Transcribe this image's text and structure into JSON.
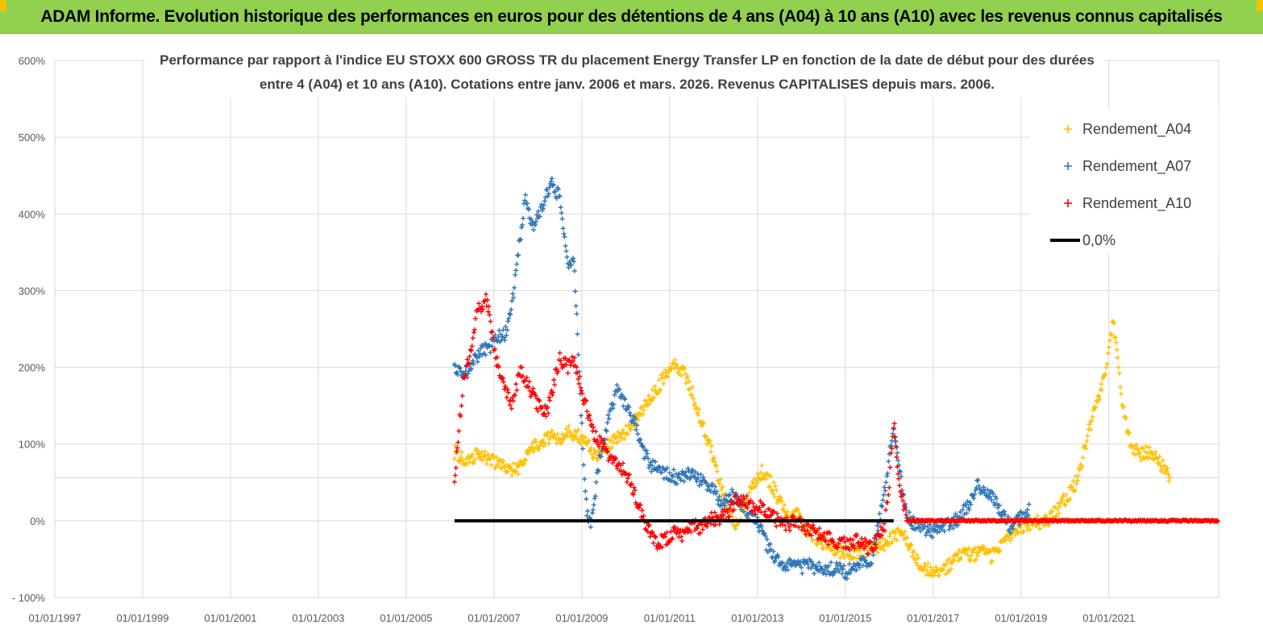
{
  "banner": {
    "title": "ADAM Informe. Evolution historique des performances en euros pour des détentions de 4 ans (A04) à 10 ans (A10) avec les revenus connus capitalisés"
  },
  "colors": {
    "banner": "#92d050",
    "A04": "#ffc000",
    "A07": "#2e75b6",
    "A10": "#ff0000",
    "zero": "#000000",
    "grid": "#d9d9d9"
  },
  "chart_data": {
    "type": "scatter",
    "title_lines": [
      "Performance par rapport à l'indice EU STOXX 600 GROSS TR  du placement Energy Transfer LP en fonction de la date de début pour des durées",
      "entre 4 (A04) et 10 ans (A10). Cotations entre janv. 2006 et mars. 2026. Revenus CAPITALISES depuis mars. 2006."
    ],
    "x_tick_labels": [
      "01/01/1997",
      "01/01/1999",
      "01/01/2001",
      "01/01/2003",
      "01/01/2005",
      "01/01/2007",
      "01/01/2009",
      "01/01/2011",
      "01/01/2013",
      "01/01/2015",
      "01/01/2017",
      "01/01/2019",
      "01/01/2021"
    ],
    "x_range": [
      1997.0,
      2023.5
    ],
    "y_tick_labels": [
      "600%",
      "500%",
      "400%",
      "300%",
      "200%",
      "100%",
      "0%",
      "- 100%"
    ],
    "y_ticks": [
      600,
      500,
      400,
      300,
      200,
      100,
      0,
      -100
    ],
    "y_range": [
      -100,
      600
    ],
    "legend_position": "top-right",
    "series": [
      {
        "name": "Rendement_A04",
        "color": "#ffc000",
        "marker": "+",
        "points": [
          [
            2006.1,
            90
          ],
          [
            2006.3,
            80
          ],
          [
            2006.6,
            85
          ],
          [
            2006.9,
            80
          ],
          [
            2007.1,
            75
          ],
          [
            2007.3,
            68
          ],
          [
            2007.5,
            65
          ],
          [
            2007.7,
            80
          ],
          [
            2007.9,
            95
          ],
          [
            2008.1,
            105
          ],
          [
            2008.3,
            110
          ],
          [
            2008.5,
            105
          ],
          [
            2008.7,
            115
          ],
          [
            2008.9,
            112
          ],
          [
            2009.1,
            100
          ],
          [
            2009.3,
            85
          ],
          [
            2009.5,
            95
          ],
          [
            2009.7,
            105
          ],
          [
            2009.9,
            110
          ],
          [
            2010.1,
            120
          ],
          [
            2010.3,
            140
          ],
          [
            2010.5,
            155
          ],
          [
            2010.7,
            170
          ],
          [
            2010.9,
            190
          ],
          [
            2011.1,
            205
          ],
          [
            2011.3,
            195
          ],
          [
            2011.5,
            170
          ],
          [
            2011.7,
            130
          ],
          [
            2011.9,
            100
          ],
          [
            2012.1,
            60
          ],
          [
            2012.3,
            20
          ],
          [
            2012.5,
            -10
          ],
          [
            2012.7,
            20
          ],
          [
            2012.9,
            45
          ],
          [
            2013.1,
            65
          ],
          [
            2013.3,
            50
          ],
          [
            2013.5,
            25
          ],
          [
            2013.7,
            5
          ],
          [
            2013.9,
            10
          ],
          [
            2014.1,
            -10
          ],
          [
            2014.3,
            -20
          ],
          [
            2014.5,
            -30
          ],
          [
            2014.7,
            -35
          ],
          [
            2014.9,
            -40
          ],
          [
            2015.1,
            -42
          ],
          [
            2015.3,
            -40
          ],
          [
            2015.5,
            -38
          ],
          [
            2015.7,
            -35
          ],
          [
            2015.9,
            -30
          ],
          [
            2016.1,
            -20
          ],
          [
            2016.3,
            -10
          ],
          [
            2016.5,
            -40
          ],
          [
            2016.7,
            -58
          ],
          [
            2016.9,
            -65
          ],
          [
            2017.1,
            -68
          ],
          [
            2017.3,
            -60
          ],
          [
            2017.5,
            -50
          ],
          [
            2017.7,
            -42
          ],
          [
            2017.9,
            -45
          ],
          [
            2018.1,
            -40
          ],
          [
            2018.3,
            -48
          ],
          [
            2018.5,
            -35
          ],
          [
            2018.7,
            -20
          ],
          [
            2018.9,
            -10
          ],
          [
            2019.1,
            -5
          ],
          [
            2019.3,
            -2
          ],
          [
            2019.5,
            -3
          ],
          [
            2019.7,
            5
          ],
          [
            2019.9,
            20
          ],
          [
            2020.1,
            35
          ],
          [
            2020.3,
            55
          ],
          [
            2020.5,
            105
          ],
          [
            2020.7,
            150
          ],
          [
            2020.9,
            185
          ],
          [
            2021.0,
            230
          ],
          [
            2021.1,
            260
          ],
          [
            2021.2,
            215
          ],
          [
            2021.3,
            150
          ],
          [
            2021.5,
            100
          ],
          [
            2021.7,
            85
          ],
          [
            2021.9,
            90
          ],
          [
            2022.1,
            80
          ],
          [
            2022.3,
            65
          ],
          [
            2022.4,
            55
          ]
        ]
      },
      {
        "name": "Rendement_A07",
        "color": "#2e75b6",
        "marker": "+",
        "points": [
          [
            2006.1,
            200
          ],
          [
            2006.3,
            185
          ],
          [
            2006.5,
            205
          ],
          [
            2006.7,
            220
          ],
          [
            2006.9,
            225
          ],
          [
            2007.1,
            240
          ],
          [
            2007.3,
            245
          ],
          [
            2007.5,
            320
          ],
          [
            2007.7,
            420
          ],
          [
            2007.9,
            380
          ],
          [
            2008.1,
            410
          ],
          [
            2008.3,
            440
          ],
          [
            2008.5,
            420
          ],
          [
            2008.7,
            330
          ],
          [
            2008.8,
            350
          ],
          [
            2008.9,
            250
          ],
          [
            2009.0,
            120
          ],
          [
            2009.1,
            20
          ],
          [
            2009.2,
            -10
          ],
          [
            2009.4,
            80
          ],
          [
            2009.6,
            130
          ],
          [
            2009.8,
            175
          ],
          [
            2010.0,
            150
          ],
          [
            2010.2,
            130
          ],
          [
            2010.4,
            90
          ],
          [
            2010.6,
            70
          ],
          [
            2010.8,
            65
          ],
          [
            2011.0,
            60
          ],
          [
            2011.2,
            55
          ],
          [
            2011.4,
            60
          ],
          [
            2011.6,
            55
          ],
          [
            2011.8,
            50
          ],
          [
            2012.0,
            40
          ],
          [
            2012.2,
            20
          ],
          [
            2012.4,
            35
          ],
          [
            2012.6,
            25
          ],
          [
            2012.8,
            10
          ],
          [
            2013.0,
            0
          ],
          [
            2013.2,
            -30
          ],
          [
            2013.4,
            -50
          ],
          [
            2013.6,
            -55
          ],
          [
            2013.8,
            -58
          ],
          [
            2014.0,
            -60
          ],
          [
            2014.2,
            -58
          ],
          [
            2014.4,
            -62
          ],
          [
            2014.6,
            -65
          ],
          [
            2014.8,
            -60
          ],
          [
            2015.0,
            -68
          ],
          [
            2015.2,
            -62
          ],
          [
            2015.4,
            -55
          ],
          [
            2015.6,
            -50
          ],
          [
            2015.8,
            10
          ],
          [
            2016.0,
            80
          ],
          [
            2016.1,
            120
          ],
          [
            2016.2,
            80
          ],
          [
            2016.4,
            5
          ],
          [
            2016.6,
            -5
          ],
          [
            2016.8,
            -10
          ],
          [
            2017.0,
            -15
          ],
          [
            2017.2,
            -10
          ],
          [
            2017.4,
            -5
          ],
          [
            2017.6,
            5
          ],
          [
            2017.8,
            20
          ],
          [
            2018.0,
            45
          ],
          [
            2018.2,
            40
          ],
          [
            2018.4,
            25
          ],
          [
            2018.6,
            5
          ],
          [
            2018.8,
            -10
          ],
          [
            2019.0,
            5
          ],
          [
            2019.2,
            15
          ]
        ]
      },
      {
        "name": "Rendement_A10",
        "color": "#ff0000",
        "marker": "+",
        "points": [
          [
            2006.1,
            45
          ],
          [
            2006.2,
            120
          ],
          [
            2006.3,
            180
          ],
          [
            2006.5,
            230
          ],
          [
            2006.6,
            270
          ],
          [
            2006.8,
            290
          ],
          [
            2006.9,
            270
          ],
          [
            2007.0,
            220
          ],
          [
            2007.2,
            180
          ],
          [
            2007.4,
            150
          ],
          [
            2007.5,
            175
          ],
          [
            2007.6,
            195
          ],
          [
            2007.8,
            175
          ],
          [
            2008.0,
            150
          ],
          [
            2008.2,
            140
          ],
          [
            2008.4,
            190
          ],
          [
            2008.5,
            210
          ],
          [
            2008.7,
            200
          ],
          [
            2008.8,
            215
          ],
          [
            2008.9,
            190
          ],
          [
            2009.1,
            150
          ],
          [
            2009.3,
            110
          ],
          [
            2009.5,
            95
          ],
          [
            2009.7,
            80
          ],
          [
            2009.9,
            70
          ],
          [
            2010.1,
            50
          ],
          [
            2010.3,
            20
          ],
          [
            2010.5,
            -10
          ],
          [
            2010.7,
            -30
          ],
          [
            2010.9,
            -25
          ],
          [
            2011.1,
            -15
          ],
          [
            2011.3,
            -20
          ],
          [
            2011.5,
            -5
          ],
          [
            2011.7,
            -10
          ],
          [
            2011.9,
            5
          ],
          [
            2012.1,
            0
          ],
          [
            2012.3,
            10
          ],
          [
            2012.5,
            25
          ],
          [
            2012.7,
            30
          ],
          [
            2012.9,
            15
          ],
          [
            2013.1,
            20
          ],
          [
            2013.3,
            5
          ],
          [
            2013.5,
            0
          ],
          [
            2013.7,
            -5
          ],
          [
            2013.9,
            0
          ],
          [
            2014.1,
            -10
          ],
          [
            2014.3,
            -15
          ],
          [
            2014.5,
            -20
          ],
          [
            2014.7,
            -25
          ],
          [
            2014.9,
            -28
          ],
          [
            2015.1,
            -30
          ],
          [
            2015.3,
            -25
          ],
          [
            2015.5,
            -35
          ],
          [
            2015.7,
            -30
          ],
          [
            2015.9,
            -5
          ],
          [
            2016.0,
            50
          ],
          [
            2016.1,
            130
          ],
          [
            2016.2,
            60
          ],
          [
            2016.4,
            0
          ],
          [
            2017.0,
            0
          ],
          [
            2018.0,
            0
          ],
          [
            2019.0,
            0
          ],
          [
            2020.0,
            0
          ],
          [
            2021.0,
            0
          ],
          [
            2022.0,
            0
          ],
          [
            2023.0,
            0
          ],
          [
            2023.5,
            0
          ]
        ]
      },
      {
        "name": "0,0%",
        "color": "#000000",
        "marker": "line",
        "points": [
          [
            2006.1,
            0
          ],
          [
            2016.1,
            0
          ]
        ]
      }
    ]
  }
}
